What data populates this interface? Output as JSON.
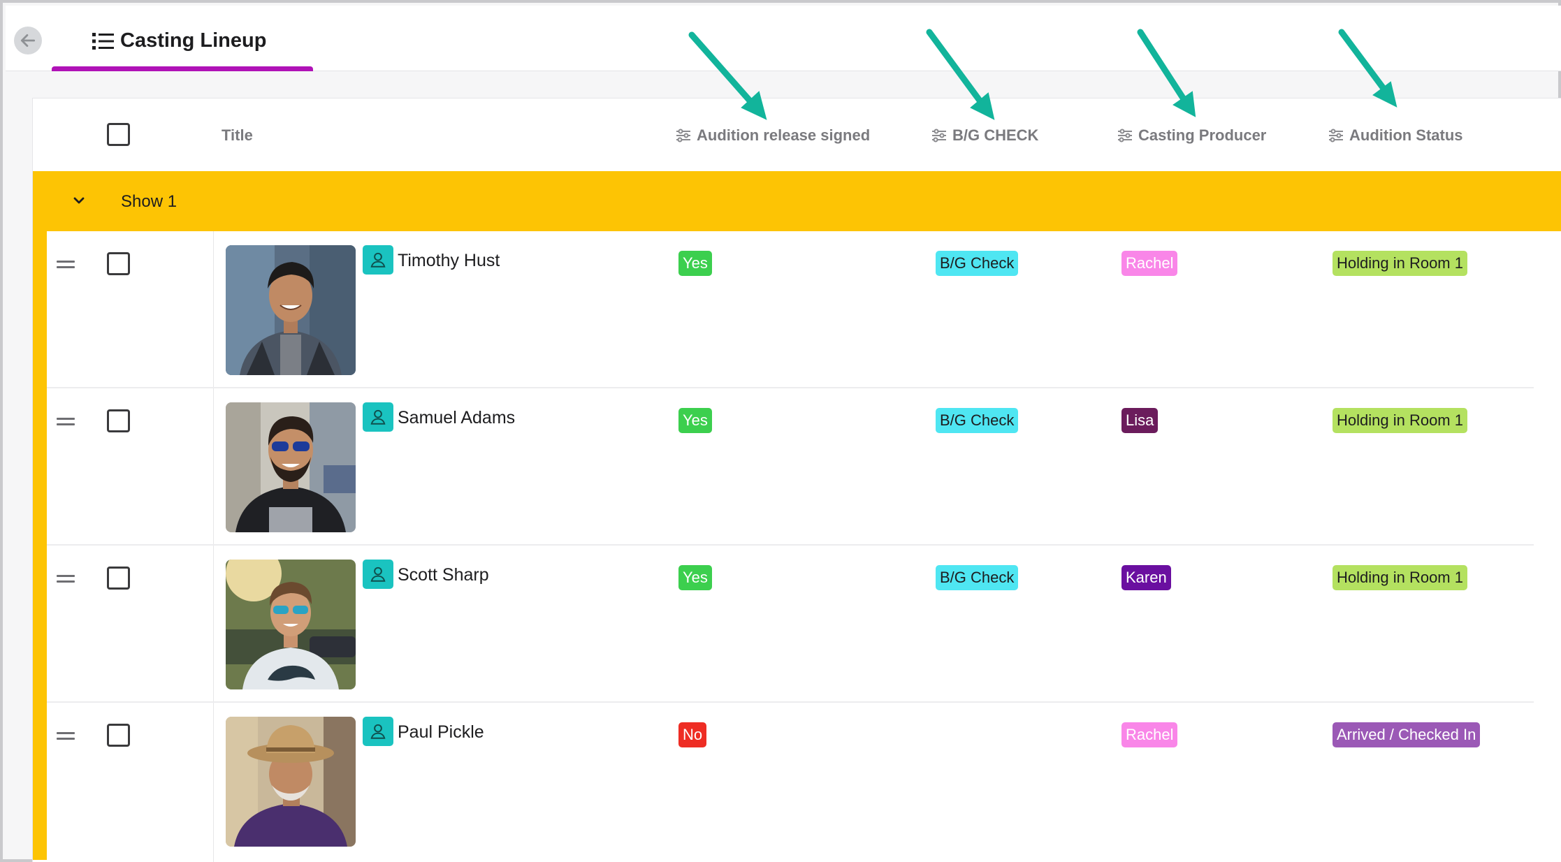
{
  "header": {
    "tab_label": "Casting Lineup"
  },
  "table": {
    "columns": {
      "title": "Title",
      "release": "Audition release signed",
      "bg": "B/G CHECK",
      "producer": "Casting Producer",
      "status": "Audition Status"
    },
    "group": {
      "label": "Show 1",
      "color": "#fdc404"
    },
    "rows": [
      {
        "name": "Timothy Hust",
        "release": "Yes",
        "bg": "B/G Check",
        "producer": "Rachel",
        "status": "Holding in Room 1"
      },
      {
        "name": "Samuel Adams",
        "release": "Yes",
        "bg": "B/G Check",
        "producer": "Lisa",
        "status": "Holding in Room 1"
      },
      {
        "name": "Scott Sharp",
        "release": "Yes",
        "bg": "B/G Check",
        "producer": "Karen",
        "status": "Holding in Room 1"
      },
      {
        "name": "Paul Pickle",
        "release": "No",
        "bg": "",
        "producer": "Rachel",
        "status": "Arrived / Checked In"
      }
    ]
  },
  "colors": {
    "accent_tab": "#b012b7",
    "yes": "#3ccf4e",
    "no": "#ee2d24",
    "bg_check": "#4fe6f2",
    "rachel": "#f986e8",
    "lisa": "#6b1c5c",
    "karen": "#6a0fa0",
    "holding": "#b4e160",
    "arrived": "#9b59b6",
    "arrows": "#12b49b"
  },
  "icons": {
    "back": "arrow-left-icon",
    "tab": "list-icon",
    "column_filter": "sliders-icon",
    "person": "person-icon",
    "group_toggle": "chevron-down-icon",
    "drag": "drag-handle-icon"
  }
}
